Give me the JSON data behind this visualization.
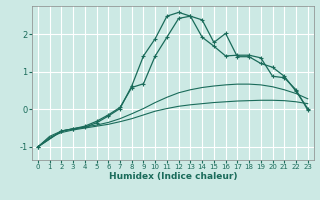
{
  "xlabel": "Humidex (Indice chaleur)",
  "background_color": "#cce9e4",
  "grid_color": "#ffffff",
  "line_color": "#1a6b5a",
  "xlim": [
    -0.5,
    23.5
  ],
  "ylim": [
    -1.35,
    2.75
  ],
  "xticks": [
    0,
    1,
    2,
    3,
    4,
    5,
    6,
    7,
    8,
    9,
    10,
    11,
    12,
    13,
    14,
    15,
    16,
    17,
    18,
    19,
    20,
    21,
    22,
    23
  ],
  "yticks": [
    -1,
    0,
    1,
    2
  ],
  "s1_x": [
    0,
    1,
    2,
    3,
    4,
    5,
    6,
    7,
    8,
    9,
    10,
    11,
    12,
    13,
    14,
    15,
    16,
    17,
    18,
    19,
    20,
    21,
    22,
    23
  ],
  "s1_y": [
    -1.0,
    -0.75,
    -0.62,
    -0.55,
    -0.5,
    -0.45,
    -0.4,
    -0.33,
    -0.25,
    -0.15,
    -0.05,
    0.02,
    0.08,
    0.12,
    0.15,
    0.18,
    0.2,
    0.22,
    0.23,
    0.24,
    0.24,
    0.23,
    0.2,
    0.15
  ],
  "s2_x": [
    0,
    1,
    2,
    3,
    4,
    5,
    6,
    7,
    8,
    9,
    10,
    11,
    12,
    13,
    14,
    15,
    16,
    17,
    18,
    19,
    20,
    21,
    22,
    23
  ],
  "s2_y": [
    -1.0,
    -0.72,
    -0.58,
    -0.52,
    -0.47,
    -0.42,
    -0.35,
    -0.25,
    -0.12,
    0.02,
    0.18,
    0.32,
    0.44,
    0.52,
    0.58,
    0.62,
    0.65,
    0.67,
    0.67,
    0.65,
    0.6,
    0.52,
    0.42,
    0.28
  ],
  "s3_x": [
    0,
    2,
    3,
    4,
    5,
    6,
    7,
    8,
    9,
    10,
    11,
    12,
    13,
    14,
    15,
    16,
    17,
    18,
    19,
    20,
    21,
    22,
    23
  ],
  "s3_y": [
    -1.0,
    -0.58,
    -0.52,
    -0.45,
    -0.32,
    -0.15,
    0.05,
    0.58,
    0.68,
    1.42,
    1.92,
    2.42,
    2.48,
    2.38,
    1.78,
    2.02,
    1.4,
    1.4,
    1.22,
    1.12,
    0.88,
    0.48,
    0.02
  ],
  "s4_x": [
    0,
    2,
    3,
    4,
    5,
    6,
    7,
    8,
    9,
    10,
    11,
    12,
    13,
    14,
    15,
    16,
    17,
    18,
    19,
    20,
    21,
    22,
    23
  ],
  "s4_y": [
    -1.0,
    -0.58,
    -0.52,
    -0.48,
    -0.36,
    -0.18,
    0.02,
    0.62,
    1.42,
    1.88,
    2.48,
    2.58,
    2.48,
    1.92,
    1.68,
    1.42,
    1.44,
    1.44,
    1.37,
    0.88,
    0.84,
    0.52,
    -0.02
  ]
}
